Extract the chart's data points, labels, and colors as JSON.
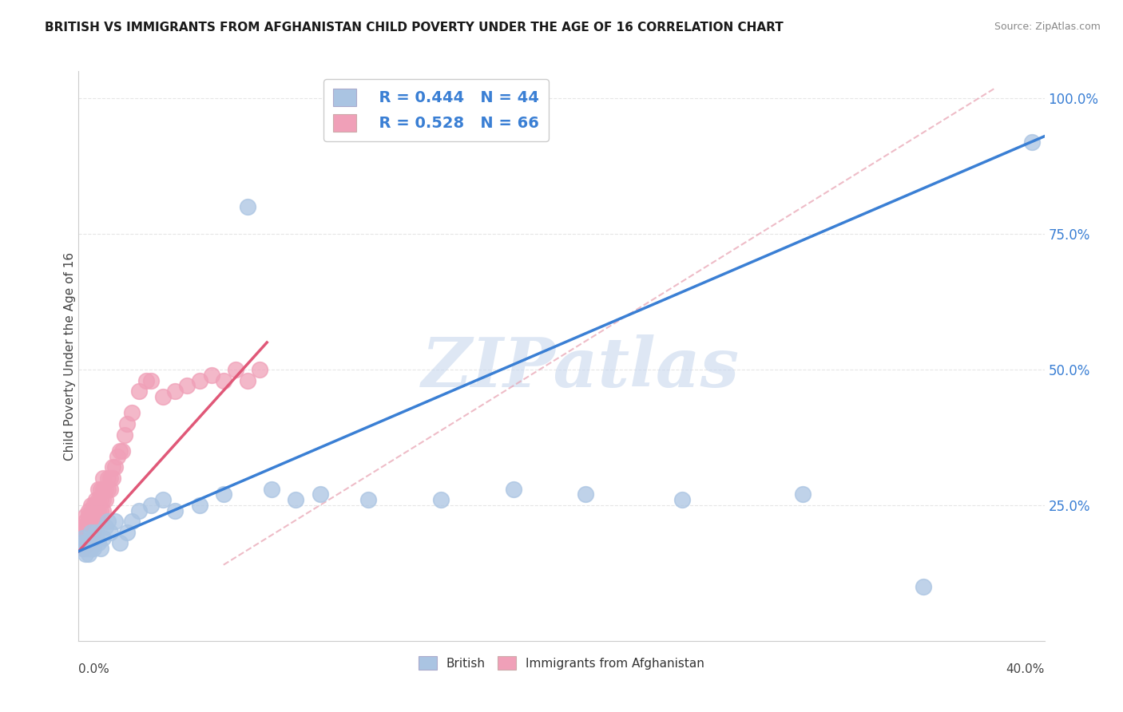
{
  "title": "BRITISH VS IMMIGRANTS FROM AFGHANISTAN CHILD POVERTY UNDER THE AGE OF 16 CORRELATION CHART",
  "source": "Source: ZipAtlas.com",
  "ylabel": "Child Poverty Under the Age of 16",
  "xlim": [
    0.0,
    0.4
  ],
  "ylim": [
    0.0,
    1.05
  ],
  "legend_british_R": "R = 0.444",
  "legend_british_N": "N = 44",
  "legend_afghan_R": "R = 0.528",
  "legend_afghan_N": "N = 66",
  "british_color": "#aac4e2",
  "afghan_color": "#f0a0b8",
  "british_line_color": "#3a7fd4",
  "afghan_line_color": "#e05878",
  "ref_line_color": "#e8a0b0",
  "watermark": "ZIPatlas",
  "background_color": "#ffffff",
  "grid_color": "#e0e0e0",
  "british_x": [
    0.001,
    0.002,
    0.002,
    0.003,
    0.003,
    0.003,
    0.004,
    0.004,
    0.004,
    0.005,
    0.005,
    0.005,
    0.006,
    0.006,
    0.007,
    0.007,
    0.008,
    0.009,
    0.01,
    0.011,
    0.012,
    0.013,
    0.015,
    0.017,
    0.02,
    0.022,
    0.025,
    0.03,
    0.035,
    0.04,
    0.05,
    0.06,
    0.07,
    0.08,
    0.09,
    0.1,
    0.12,
    0.15,
    0.18,
    0.21,
    0.25,
    0.3,
    0.35,
    0.395
  ],
  "british_y": [
    0.18,
    0.17,
    0.19,
    0.16,
    0.17,
    0.18,
    0.17,
    0.18,
    0.16,
    0.17,
    0.19,
    0.2,
    0.18,
    0.17,
    0.19,
    0.2,
    0.18,
    0.17,
    0.19,
    0.21,
    0.22,
    0.2,
    0.22,
    0.18,
    0.2,
    0.22,
    0.24,
    0.25,
    0.26,
    0.24,
    0.25,
    0.27,
    0.8,
    0.28,
    0.26,
    0.27,
    0.26,
    0.26,
    0.28,
    0.27,
    0.26,
    0.27,
    0.1,
    0.92
  ],
  "afghan_x": [
    0.001,
    0.001,
    0.001,
    0.002,
    0.002,
    0.002,
    0.002,
    0.003,
    0.003,
    0.003,
    0.003,
    0.003,
    0.004,
    0.004,
    0.004,
    0.004,
    0.004,
    0.005,
    0.005,
    0.005,
    0.005,
    0.006,
    0.006,
    0.006,
    0.006,
    0.007,
    0.007,
    0.007,
    0.008,
    0.008,
    0.008,
    0.008,
    0.009,
    0.009,
    0.009,
    0.01,
    0.01,
    0.01,
    0.01,
    0.011,
    0.011,
    0.012,
    0.012,
    0.013,
    0.013,
    0.014,
    0.014,
    0.015,
    0.016,
    0.017,
    0.018,
    0.019,
    0.02,
    0.022,
    0.025,
    0.028,
    0.03,
    0.035,
    0.04,
    0.045,
    0.05,
    0.055,
    0.06,
    0.065,
    0.07,
    0.075
  ],
  "afghan_y": [
    0.18,
    0.19,
    0.2,
    0.17,
    0.18,
    0.2,
    0.21,
    0.18,
    0.19,
    0.21,
    0.22,
    0.23,
    0.18,
    0.2,
    0.22,
    0.23,
    0.24,
    0.19,
    0.21,
    0.23,
    0.25,
    0.2,
    0.22,
    0.24,
    0.25,
    0.22,
    0.24,
    0.26,
    0.22,
    0.24,
    0.26,
    0.28,
    0.24,
    0.26,
    0.28,
    0.24,
    0.26,
    0.28,
    0.3,
    0.26,
    0.28,
    0.28,
    0.3,
    0.28,
    0.3,
    0.3,
    0.32,
    0.32,
    0.34,
    0.35,
    0.35,
    0.38,
    0.4,
    0.42,
    0.46,
    0.48,
    0.48,
    0.45,
    0.46,
    0.47,
    0.48,
    0.49,
    0.48,
    0.5,
    0.48,
    0.5
  ],
  "blue_line_x": [
    0.0,
    0.4
  ],
  "blue_line_y": [
    0.165,
    0.93
  ],
  "pink_line_x": [
    0.0,
    0.078
  ],
  "pink_line_y": [
    0.165,
    0.55
  ],
  "ref_line_x": [
    0.06,
    0.38
  ],
  "ref_line_y": [
    0.14,
    1.02
  ]
}
